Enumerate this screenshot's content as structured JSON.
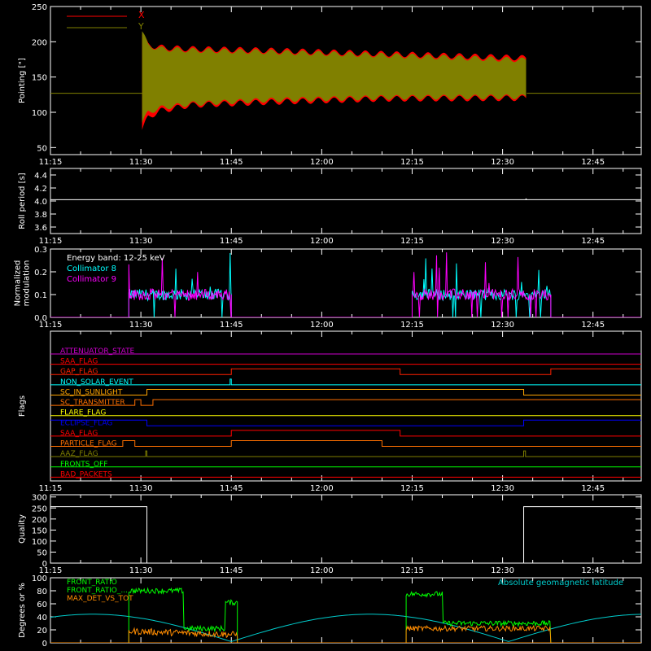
{
  "colors": {
    "background": "#000000",
    "axis": "#ffffff",
    "x_series": "#ff0000",
    "y_series": "#808000",
    "roll": "#ffffff",
    "coll8": "#00ffff",
    "coll9": "#ff00ff",
    "quality": "#ffffff",
    "front_ratio": "#00ff00",
    "max_det": "#ff8c00",
    "geolat": "#00cccc"
  },
  "time_ticks": [
    "11:15",
    "11:30",
    "11:45",
    "12:00",
    "12:15",
    "12:30",
    "12:45"
  ],
  "chart_data": [
    {
      "id": "pointing",
      "type": "area",
      "ylabel": "Pointing [\"]",
      "ylim": [
        40,
        250
      ],
      "yticks": [
        "50",
        "100",
        "150",
        "200",
        "250"
      ],
      "ytick_values": [
        50,
        100,
        150,
        200,
        250
      ],
      "xlim_minutes_after_1115": [
        0,
        98
      ],
      "legend": [
        "X",
        "Y"
      ],
      "legend_position": "top-left",
      "baseline": 127,
      "active_range": [
        "11:30",
        "12:34"
      ],
      "x_envelope": {
        "t_min": [
          0,
          1,
          3,
          8,
          20,
          40,
          64
        ],
        "upper": [
          210,
          196,
          192,
          190,
          188,
          183,
          177
        ],
        "lower": [
          75,
          93,
          102,
          110,
          114,
          119,
          120
        ]
      },
      "y_envelope": {
        "t_min": [
          0,
          1,
          3,
          8,
          20,
          40,
          64
        ],
        "upper": [
          215,
          195,
          190,
          188,
          186,
          181,
          174
        ],
        "lower": [
          85,
          100,
          106,
          112,
          117,
          121,
          122
        ]
      }
    },
    {
      "id": "roll",
      "type": "line",
      "ylabel": "Roll period [s]",
      "ylim": [
        3.5,
        4.5
      ],
      "yticks": [
        "3.6",
        "3.8",
        "4.0",
        "4.2",
        "4.4"
      ],
      "ytick_values": [
        3.6,
        3.8,
        4.0,
        4.2,
        4.4
      ],
      "value": 4.02
    },
    {
      "id": "modulation",
      "type": "line",
      "ylabel": [
        "Normalized",
        "modulation"
      ],
      "ylim": [
        0,
        0.3
      ],
      "yticks": [
        "0.0",
        "0.1",
        "0.2",
        "0.3"
      ],
      "ytick_values": [
        0,
        0.1,
        0.2,
        0.3
      ],
      "annotation": "Energy band: 12-25 keV",
      "legend": [
        "Collimator 8",
        "Collimator 9"
      ],
      "intervals": [
        [
          "11:28",
          "11:45"
        ],
        [
          "12:15",
          "12:38"
        ]
      ],
      "typical_level": 0.1
    },
    {
      "id": "flags",
      "type": "line",
      "ylabel": "Flags",
      "flags": [
        {
          "name": "ATTENUATOR_STATE",
          "color": "#cc00cc",
          "steps": []
        },
        {
          "name": "SAA_FLAG",
          "color": "#ff0000",
          "steps": []
        },
        {
          "name": "GAP_FLAG",
          "color": "#ff2000",
          "steps": [
            [
              "11:15",
              0
            ],
            [
              "11:45",
              1
            ],
            [
              "12:13",
              0
            ],
            [
              "12:38",
              1
            ]
          ]
        },
        {
          "name": "NON_SOLAR_EVENT",
          "color": "#00ffff",
          "steps": [
            [
              "11:15",
              0
            ],
            [
              "11:44.8",
              1
            ],
            [
              "11:45",
              0
            ]
          ]
        },
        {
          "name": "SC_IN_SUNLIGHT",
          "color": "#ffa500",
          "steps": [
            [
              "11:15",
              0
            ],
            [
              "11:31",
              1
            ],
            [
              "12:33.5",
              0
            ]
          ]
        },
        {
          "name": "SC_TRANSMITTER",
          "color": "#ff7000",
          "steps": [
            [
              "11:15",
              0
            ],
            [
              "11:29",
              1
            ],
            [
              "11:30",
              0
            ],
            [
              "11:32",
              1
            ]
          ]
        },
        {
          "name": "FLARE_FLAG",
          "color": "#ffff00",
          "steps": []
        },
        {
          "name": "ECLIPSE_FLAG",
          "color": "#0000ff",
          "steps": [
            [
              "11:15",
              1
            ],
            [
              "11:31",
              0
            ],
            [
              "12:33.5",
              1
            ]
          ]
        },
        {
          "name": "SAA_FLAG",
          "color": "#ff0000",
          "steps": [
            [
              "11:15",
              0
            ],
            [
              "11:45",
              1
            ],
            [
              "12:13",
              0
            ]
          ]
        },
        {
          "name": "PARTICLE_FLAG",
          "color": "#ff7000",
          "steps": [
            [
              "11:15",
              0
            ],
            [
              "11:27",
              1
            ],
            [
              "11:29",
              0
            ],
            [
              "11:45",
              1
            ],
            [
              "12:10",
              0
            ]
          ]
        },
        {
          "name": "AAZ_FLAG",
          "color": "#808000",
          "steps": [
            [
              "11:15",
              0
            ],
            [
              "11:30.8",
              1
            ],
            [
              "11:31",
              0
            ],
            [
              "12:33.5",
              1
            ],
            [
              "12:33.8",
              0
            ]
          ]
        },
        {
          "name": "FRONTS_OFF",
          "color": "#00ff00",
          "steps": []
        },
        {
          "name": "BAD_PACKETS",
          "color": "#ff0000",
          "steps": []
        }
      ]
    },
    {
      "id": "quality",
      "type": "line",
      "ylabel": "Quality",
      "ylim": [
        0,
        310
      ],
      "yticks": [
        "0",
        "50",
        "100",
        "150",
        "200",
        "250",
        "300"
      ],
      "ytick_values": [
        0,
        50,
        100,
        150,
        200,
        250,
        300
      ],
      "steps": [
        [
          "11:15",
          256
        ],
        [
          "11:31",
          0
        ],
        [
          "12:33.5",
          256
        ]
      ]
    },
    {
      "id": "front_ratio",
      "type": "line",
      "ylabel": "Degrees or %",
      "ylim": [
        0,
        100
      ],
      "yticks": [
        "0",
        "20",
        "40",
        "60",
        "80",
        "100"
      ],
      "ytick_values": [
        0,
        20,
        40,
        60,
        80,
        100
      ],
      "legend": [
        "FRONT_RATIO",
        "FRONT_RATIO_...",
        "MAX_DET_VS_TOT"
      ],
      "right_label": "Absolute geomagnetic latitude",
      "intervals": [
        [
          "11:28",
          "11:46"
        ],
        [
          "12:14",
          "12:38"
        ]
      ]
    }
  ]
}
